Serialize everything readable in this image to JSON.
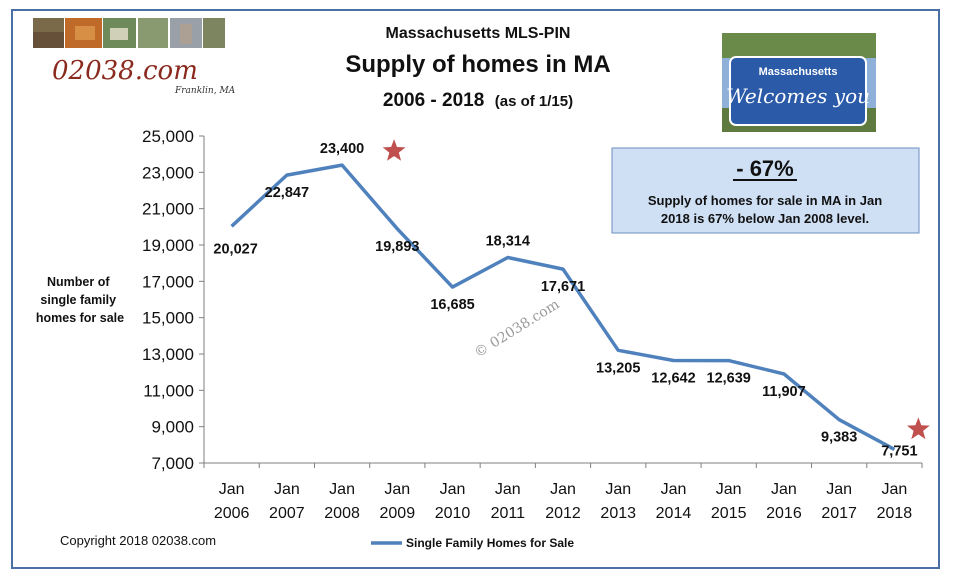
{
  "logo": {
    "name": "02038.com",
    "location": "Franklin, MA"
  },
  "titles": {
    "line1": "Massachusetts MLS-PIN",
    "line2": "Supply of homes in MA",
    "line3": "2006 - 2018",
    "line3_note": "(as of 1/15)"
  },
  "sign": {
    "top": "Massachusetts",
    "script": "Welcomes you"
  },
  "callout": {
    "headline": "- 67%",
    "line1": "Supply of homes for sale in MA in Jan",
    "line2": "2018 is 67% below Jan 2008 level."
  },
  "y_axis_title": [
    "Number of",
    "single family",
    "homes for sale"
  ],
  "watermark": "© 02038.com",
  "copyright": "Copyright 2018 02038.com",
  "colors": {
    "line": "#4f81bd",
    "star": "#c0504d",
    "callout_fill": "#cfe0f5",
    "frame": "#4a6fa5"
  },
  "chart_data": {
    "type": "line",
    "x_month_label": "Jan",
    "categories": [
      "2006",
      "2007",
      "2008",
      "2009",
      "2010",
      "2011",
      "2012",
      "2013",
      "2014",
      "2015",
      "2016",
      "2017",
      "2018"
    ],
    "series": [
      {
        "name": "Single Family Homes for Sale",
        "values": [
          20027,
          22847,
          23400,
          19893,
          16685,
          18314,
          17671,
          13205,
          12642,
          12639,
          11907,
          9383,
          7751
        ],
        "labels": [
          "20,027",
          "22,847",
          "23,400",
          "19,893",
          "16,685",
          "18,314",
          "17,671",
          "13,205",
          "12,642",
          "12,639",
          "11,907",
          "9,383",
          "7,751"
        ]
      }
    ],
    "ylim": [
      7000,
      25000
    ],
    "y_ticks": [
      7000,
      9000,
      11000,
      13000,
      15000,
      17000,
      19000,
      21000,
      23000,
      25000
    ],
    "y_tick_labels": [
      "7,000",
      "9,000",
      "11,000",
      "13,000",
      "15,000",
      "17,000",
      "19,000",
      "21,000",
      "23,000",
      "25,000"
    ],
    "highlighted_years": [
      "2008",
      "2018"
    ],
    "legend_position": "bottom",
    "grid": false
  }
}
